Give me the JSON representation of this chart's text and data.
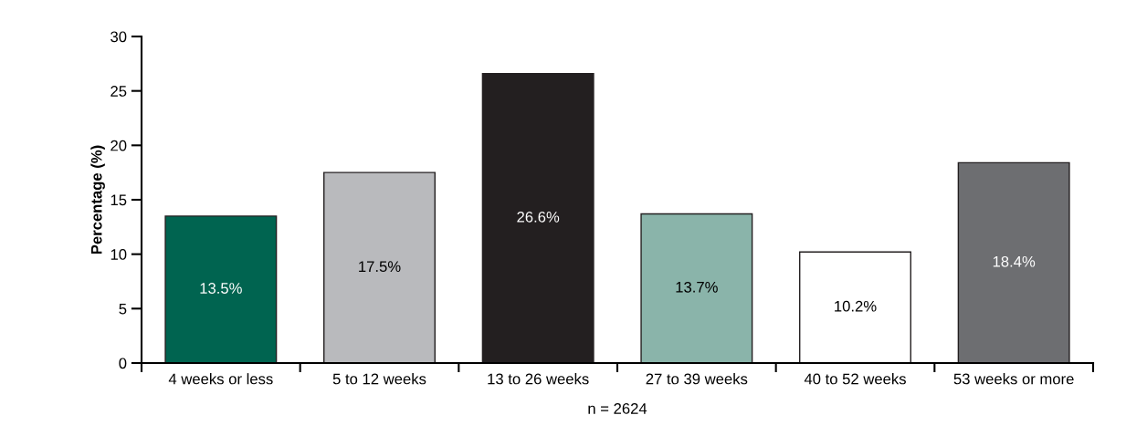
{
  "chart_data": {
    "type": "bar",
    "ylabel": "Percentage (%)",
    "categories": [
      "4 weeks or less",
      "5 to 12 weeks",
      "13 to 26 weeks",
      "27 to 39 weeks",
      "40 to 52 weeks",
      "53 weeks or more"
    ],
    "values": [
      13.5,
      17.5,
      26.6,
      13.7,
      10.2,
      18.4
    ],
    "colors": [
      "#006450",
      "#b9babd",
      "#231f20",
      "#8ab4aa",
      "#ffffff",
      "#6d6e71"
    ],
    "value_labels": [
      "13.5%",
      "17.5%",
      "26.6%",
      "13.7%",
      "10.2%",
      "18.4%"
    ],
    "ylim": [
      0,
      30
    ],
    "yticks": [
      0,
      5,
      10,
      15,
      20,
      25,
      30
    ],
    "grid": false,
    "legend": false,
    "annotations": [
      "n = 2624"
    ]
  }
}
